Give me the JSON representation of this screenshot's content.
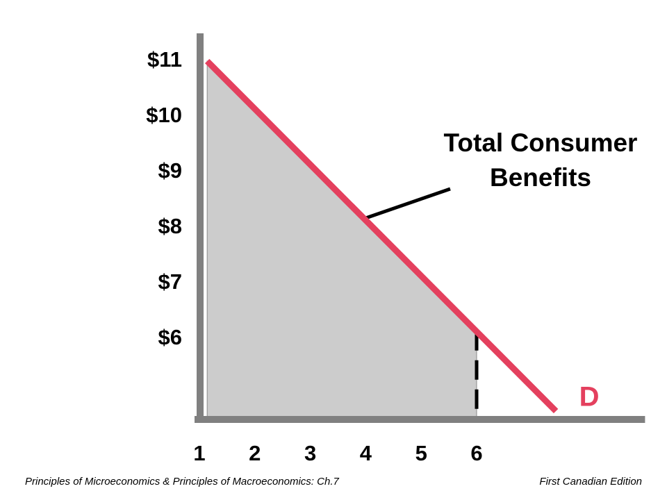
{
  "chart_data": {
    "type": "line",
    "series": [
      {
        "name": "D",
        "color": "#e4405e",
        "x": [
          1.14,
          7.43
        ],
        "values": [
          11,
          4.7
        ]
      }
    ],
    "shaded_area": {
      "color": "#cccccc",
      "x": [
        1.14,
        6
      ],
      "values": [
        11,
        6.14
      ]
    },
    "annotation": [
      "Total Consumer",
      "Benefits"
    ],
    "xlim": [
      1,
      9
    ],
    "xticks": [
      1,
      2,
      3,
      4,
      5,
      6
    ],
    "ylim": [
      4.5,
      11.5
    ],
    "yticks": [
      {
        "value": 11,
        "label": "$11"
      },
      {
        "value": 10,
        "label": "$10"
      },
      {
        "value": 9,
        "label": "$9"
      },
      {
        "value": 8,
        "label": "$8"
      },
      {
        "value": 7,
        "label": "$7"
      },
      {
        "value": 6,
        "label": "$6"
      }
    ],
    "footer_left": "Principles of Microeconomics & Principles of Macroeconomics:   Ch.7",
    "footer_right": "First Canadian Edition"
  }
}
